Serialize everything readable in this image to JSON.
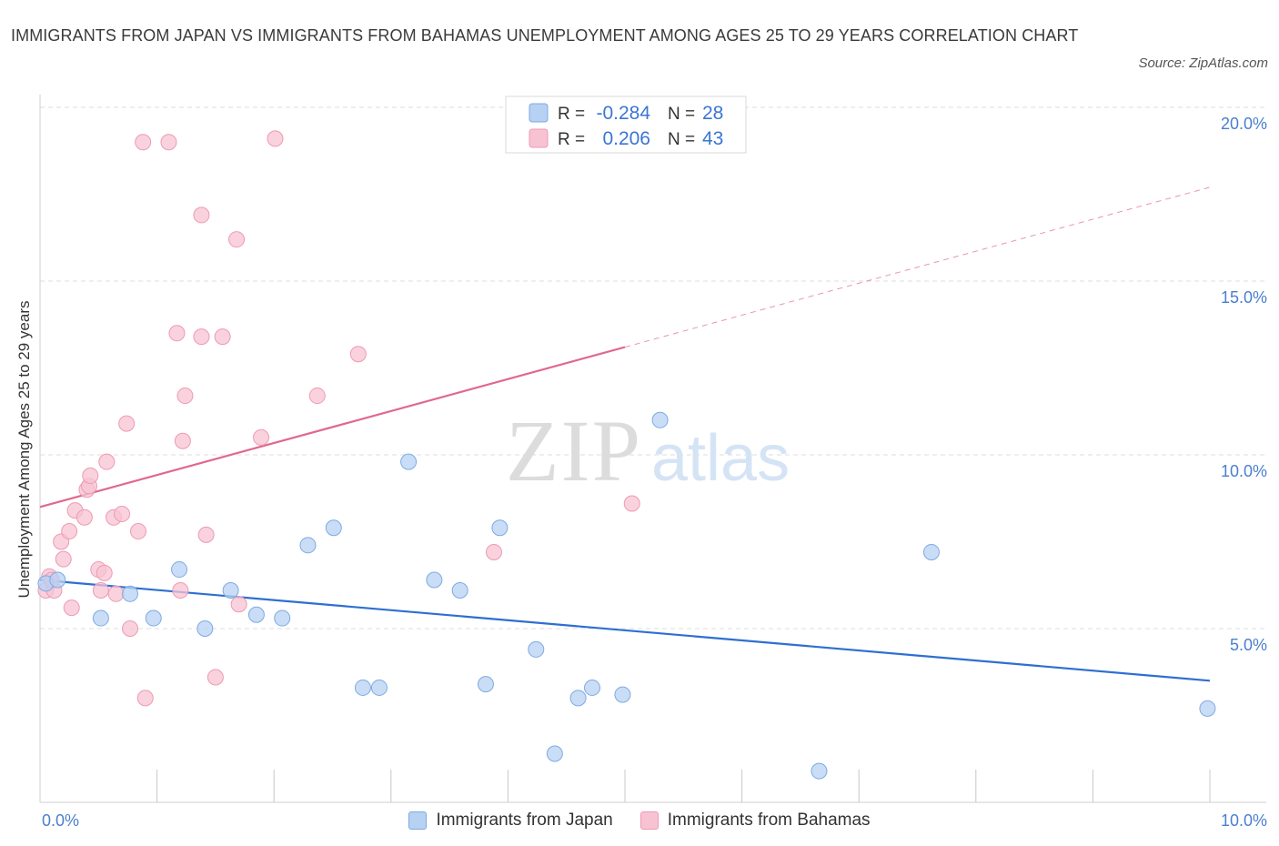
{
  "header": {
    "title": "IMMIGRANTS FROM JAPAN VS IMMIGRANTS FROM BAHAMAS UNEMPLOYMENT AMONG AGES 25 TO 29 YEARS CORRELATION CHART",
    "source": "Source: ZipAtlas.com"
  },
  "colors": {
    "japan_fill": "#b7d1f3",
    "japan_stroke": "#7eaae3",
    "japan_line": "#2e6fd0",
    "bahamas_fill": "#f7c3d3",
    "bahamas_stroke": "#ee9ab5",
    "bahamas_line": "#e06890",
    "axis_label_color": "#4a7fcf",
    "grid": "#dddddd"
  },
  "stats_legend": {
    "rows": [
      {
        "r_label": "R =",
        "r_value": "-0.284",
        "n_label": "N =",
        "n_value": "28"
      },
      {
        "r_label": "R =",
        "r_value": "0.206",
        "n_label": "N =",
        "n_value": "43"
      }
    ]
  },
  "watermark": {
    "zip": "ZIP",
    "atlas": "atlas"
  },
  "chart_data": {
    "type": "scatter",
    "xlabel": "",
    "ylabel": "Unemployment Among Ages 25 to 29 years",
    "xlim": [
      0,
      10
    ],
    "ylim": [
      0,
      20
    ],
    "x_tick_labels": [
      "0.0%",
      "10.0%"
    ],
    "y_tick_labels": [
      "5.0%",
      "10.0%",
      "15.0%",
      "20.0%"
    ],
    "y_ticks": [
      5,
      10,
      15,
      20
    ],
    "grid": true,
    "legend_position": "bottom",
    "series": [
      {
        "name": "Immigrants from Japan",
        "points": [
          [
            0.05,
            6.3
          ],
          [
            0.15,
            6.4
          ],
          [
            0.52,
            5.3
          ],
          [
            0.77,
            6.0
          ],
          [
            0.97,
            5.3
          ],
          [
            1.19,
            6.7
          ],
          [
            1.41,
            5.0
          ],
          [
            1.63,
            6.1
          ],
          [
            1.85,
            5.4
          ],
          [
            2.07,
            5.3
          ],
          [
            2.29,
            7.4
          ],
          [
            2.51,
            7.9
          ],
          [
            2.76,
            3.3
          ],
          [
            2.9,
            3.3
          ],
          [
            3.15,
            9.8
          ],
          [
            3.37,
            6.4
          ],
          [
            3.59,
            6.1
          ],
          [
            3.81,
            3.4
          ],
          [
            3.93,
            7.9
          ],
          [
            4.24,
            4.4
          ],
          [
            4.4,
            1.4
          ],
          [
            4.6,
            3.0
          ],
          [
            4.72,
            3.3
          ],
          [
            4.98,
            3.1
          ],
          [
            5.3,
            11.0
          ],
          [
            6.66,
            0.9
          ],
          [
            7.62,
            7.2
          ],
          [
            9.98,
            2.7
          ]
        ],
        "trend": {
          "x": [
            0,
            10
          ],
          "y": [
            6.4,
            3.5
          ],
          "style": "solid"
        }
      },
      {
        "name": "Immigrants from Bahamas",
        "points": [
          [
            0.05,
            6.1
          ],
          [
            0.08,
            6.5
          ],
          [
            0.12,
            6.1
          ],
          [
            0.18,
            7.5
          ],
          [
            0.2,
            7.0
          ],
          [
            0.25,
            7.8
          ],
          [
            0.27,
            5.6
          ],
          [
            0.3,
            8.4
          ],
          [
            0.38,
            8.2
          ],
          [
            0.4,
            9.0
          ],
          [
            0.42,
            9.1
          ],
          [
            0.43,
            9.4
          ],
          [
            0.5,
            6.7
          ],
          [
            0.52,
            6.1
          ],
          [
            0.55,
            6.6
          ],
          [
            0.57,
            9.8
          ],
          [
            0.63,
            8.2
          ],
          [
            0.65,
            6.0
          ],
          [
            0.7,
            8.3
          ],
          [
            0.74,
            10.9
          ],
          [
            0.77,
            5.0
          ],
          [
            0.84,
            7.8
          ],
          [
            0.88,
            19.0
          ],
          [
            0.9,
            3.0
          ],
          [
            1.1,
            19.0
          ],
          [
            1.17,
            13.5
          ],
          [
            1.38,
            13.4
          ],
          [
            1.2,
            6.1
          ],
          [
            1.22,
            10.4
          ],
          [
            1.24,
            11.7
          ],
          [
            1.38,
            16.9
          ],
          [
            1.42,
            7.7
          ],
          [
            1.5,
            3.6
          ],
          [
            1.56,
            13.4
          ],
          [
            1.68,
            16.2
          ],
          [
            1.7,
            5.7
          ],
          [
            1.89,
            10.5
          ],
          [
            2.01,
            19.1
          ],
          [
            2.37,
            11.7
          ],
          [
            2.72,
            12.9
          ],
          [
            3.88,
            7.2
          ],
          [
            5.06,
            8.6
          ],
          [
            0.1,
            6.4
          ]
        ],
        "trend": {
          "x": [
            0,
            5
          ],
          "y": [
            8.5,
            13.1
          ],
          "style": "solid",
          "extension": {
            "x": [
              5,
              10
            ],
            "y": [
              13.1,
              17.7
            ],
            "style": "dashed"
          }
        }
      }
    ]
  }
}
